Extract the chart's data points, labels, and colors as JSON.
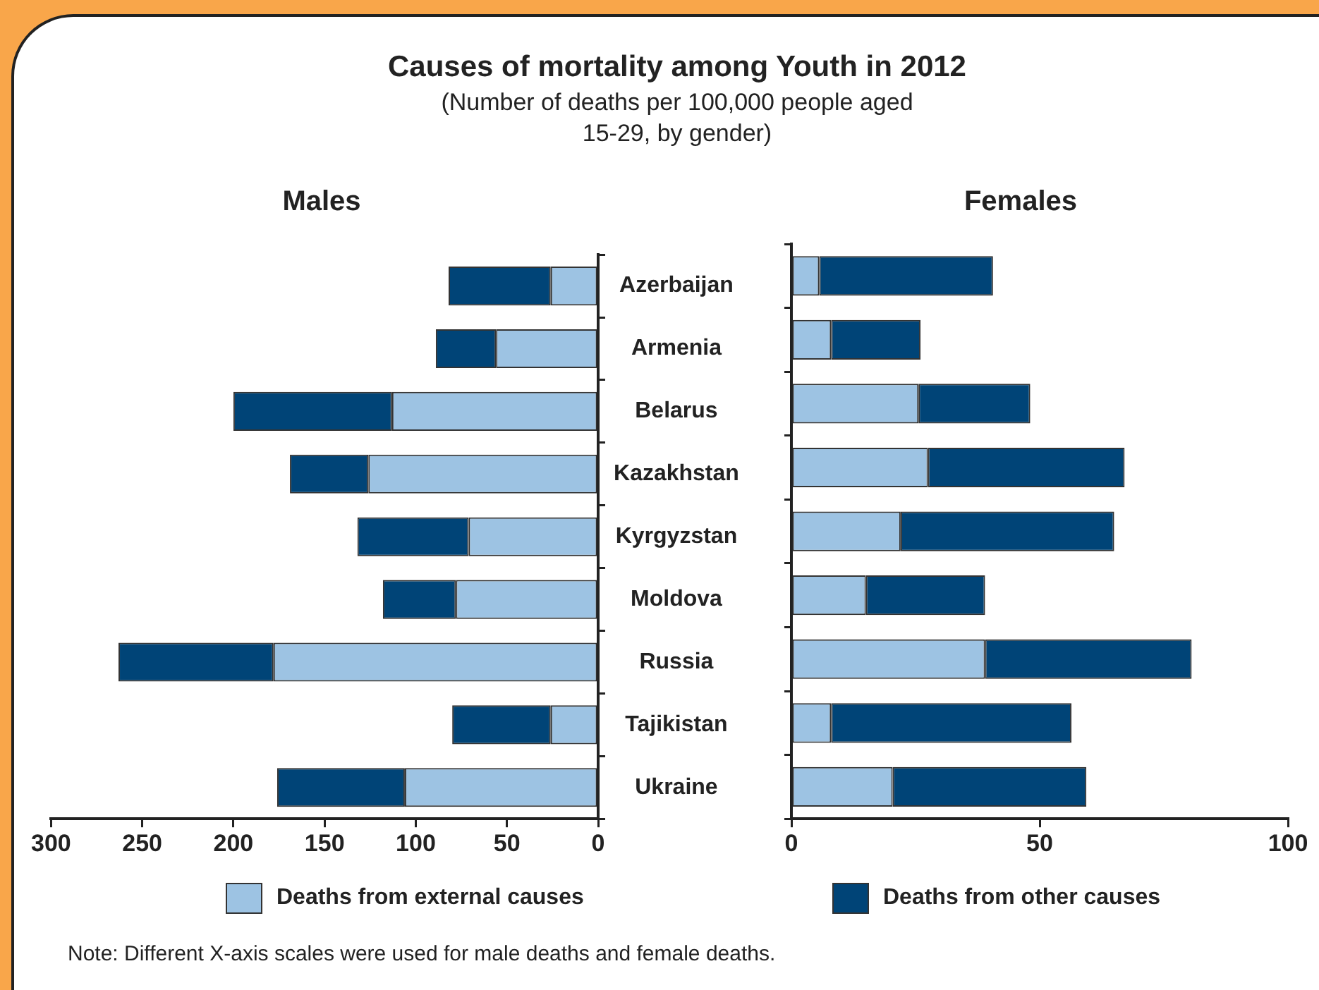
{
  "chart_data": [
    {
      "type": "bar",
      "title": "Males",
      "orientation": "horizontal",
      "stacked": true,
      "categories": [
        "Azerbaijan",
        "Armenia",
        "Belarus",
        "Kazakhstan",
        "Kyrgyzstan",
        "Moldova",
        "Russia",
        "Tajikistan",
        "Ukraine"
      ],
      "series": [
        {
          "name": "Deaths from external causes",
          "color": "#9dc3e3",
          "values": [
            26,
            56,
            113,
            126,
            71,
            78,
            178,
            26,
            106
          ]
        },
        {
          "name": "Deaths from other causes",
          "color": "#004477",
          "values": [
            56,
            33,
            87,
            43,
            61,
            40,
            85,
            54,
            70
          ]
        }
      ],
      "xlim": [
        300,
        0
      ],
      "xticks": [
        300,
        250,
        200,
        150,
        100,
        50,
        0
      ],
      "grid": false,
      "legend": "bottom",
      "annotations": [
        "Causes of mortality among Youth in 2012",
        "(Number of deaths per 100,000 people aged 15-29, by gender)"
      ]
    },
    {
      "type": "bar",
      "title": "Females",
      "orientation": "horizontal",
      "stacked": true,
      "categories": [
        null,
        null,
        null,
        null,
        null,
        null,
        null,
        null,
        null
      ],
      "series": [
        {
          "color": "#9dc3e3",
          "values": [
            5.6,
            8,
            25.6,
            27.5,
            22,
            15,
            39,
            8,
            20.4
          ]
        },
        {
          "color": "#004477",
          "values": [
            35,
            18,
            22.5,
            39.6,
            43,
            24,
            41.6,
            48.4,
            39
          ]
        }
      ],
      "xlim": [
        0,
        100
      ],
      "xticks": [
        0,
        50,
        100
      ],
      "grid": false,
      "tick_labels": "x",
      "annotations": [
        "Note: Different X-axis scales were used for male deaths and female deaths."
      ]
    }
  ]
}
